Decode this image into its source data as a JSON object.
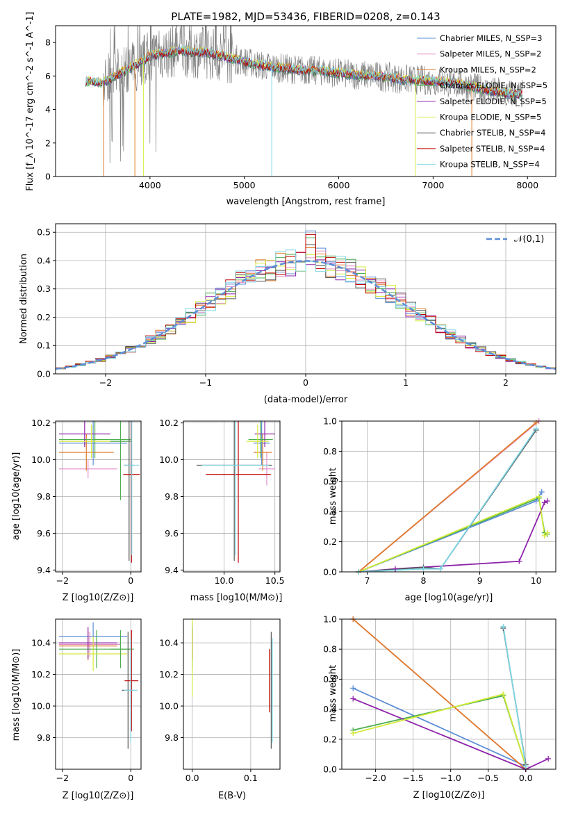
{
  "chart_data": [
    {
      "type": "line",
      "title": "PLATE=1982, MJD=53436, FIBERID=0208, z=0.143",
      "xlabel": "wavelength [Angstrom, rest frame]",
      "ylabel": "Flux [f_λ 10^-17 erg cm^-2 s^-1 A^-1]",
      "xlim": [
        3000,
        8300
      ],
      "ylim": [
        0,
        9
      ],
      "xticks": [
        "4000",
        "5000",
        "6000",
        "7000",
        "8000"
      ],
      "yticks": [
        "0",
        "2",
        "4",
        "6",
        "8"
      ],
      "legend_position": "right",
      "series": [
        {
          "name": "Chabrier MILES, N_SSP=3",
          "color": "#5b8dd6"
        },
        {
          "name": "Salpeter MILES, N_SSP=2",
          "color": "#e38fc8"
        },
        {
          "name": "Kroupa MILES, N_SSP=2",
          "color": "#e07b2a"
        },
        {
          "name": "Chabrier ELODIE, N_SSP=5",
          "color": "#4caf50"
        },
        {
          "name": "Salpeter ELODIE, N_SSP=5",
          "color": "#8e24aa"
        },
        {
          "name": "Kroupa ELODIE, N_SSP=5",
          "color": "#d4ea3a"
        },
        {
          "name": "Chabrier STELIB, N_SSP=4",
          "color": "#555555"
        },
        {
          "name": "Salpeter STELIB, N_SSP=4",
          "color": "#c00000"
        },
        {
          "name": "Kroupa STELIB, N_SSP=4",
          "color": "#7fd8e6"
        }
      ],
      "continuum": {
        "x": [
          3320,
          3500,
          3800,
          4000,
          4300,
          4600,
          4900,
          5200,
          5500,
          5800,
          6100,
          6400,
          6700,
          7000,
          7300,
          7600,
          7900
        ],
        "y": [
          5.7,
          5.6,
          6.5,
          7.2,
          7.5,
          7.4,
          7.0,
          6.6,
          6.4,
          6.3,
          6.1,
          6.0,
          5.8,
          5.7,
          5.5,
          5.1,
          4.9
        ]
      }
    },
    {
      "type": "bar",
      "xlabel": "(data-model)/error",
      "ylabel": "Normed distribution",
      "xlim": [
        -2.5,
        2.5
      ],
      "ylim": [
        0,
        0.53
      ],
      "xticks": [
        "−2",
        "−1",
        "0",
        "1",
        "2"
      ],
      "yticks": [
        "0.0",
        "0.1",
        "0.2",
        "0.3",
        "0.4",
        "0.5"
      ],
      "legend": "𝒩(0,1)",
      "legend_position": "top-right",
      "bin_width": 0.1,
      "gaussian": {
        "mean": 0,
        "sigma": 1
      }
    },
    {
      "type": "scatter",
      "xlabel": "Z [log10(Z/Z⊙)]",
      "ylabel": "age [log10(age/yr)]",
      "xlim": [
        -2.2,
        0.3
      ],
      "ylim": [
        9.39,
        10.21
      ],
      "xticks": [
        "−2",
        "0"
      ],
      "yticks": [
        "9.4",
        "9.6",
        "9.8",
        "10.0",
        "10.2"
      ],
      "points": [
        {
          "x": -1.1,
          "y": 10.09,
          "xerr": 1.0,
          "yerr": 0.12,
          "series": 0
        },
        {
          "x": -1.25,
          "y": 9.95,
          "xerr": 0.85,
          "yerr": 0.05,
          "series": 1
        },
        {
          "x": -1.3,
          "y": 10.04,
          "xerr": 0.8,
          "yerr": 0.1,
          "series": 2
        },
        {
          "x": -1.05,
          "y": 10.11,
          "xerr": 1.05,
          "yerr": 0.1,
          "series": 3
        },
        {
          "x": -1.35,
          "y": 10.14,
          "xerr": 0.75,
          "yerr": 0.07,
          "series": 4
        },
        {
          "x": -1.15,
          "y": 10.1,
          "xerr": 0.95,
          "yerr": 0.09,
          "series": 5
        },
        {
          "x": -0.3,
          "y": 10.1,
          "xerr": 0.3,
          "yerr": 0.32,
          "series": 3
        },
        {
          "x": -0.05,
          "y": 9.97,
          "xerr": 0.15,
          "yerr": 0.52,
          "series": 6
        },
        {
          "x": 0.02,
          "y": 9.92,
          "xerr": 0.24,
          "yerr": 0.48,
          "series": 7
        },
        {
          "x": 0.03,
          "y": 9.97,
          "xerr": 0.22,
          "yerr": 0.49,
          "series": 8
        }
      ]
    },
    {
      "type": "scatter",
      "xlabel": "mass [log10(M/M⊙)]",
      "ylabel": "",
      "xlim": [
        9.6,
        10.55
      ],
      "ylim": [
        9.39,
        10.21
      ],
      "xticks": [
        "10.0",
        "10.5"
      ],
      "yticks": [
        "9.4",
        "9.6",
        "9.8",
        "10.0",
        "10.2"
      ],
      "points": [
        {
          "x": 10.37,
          "y": 10.09,
          "xerr": 0.08,
          "yerr": 0.12,
          "series": 0
        },
        {
          "x": 10.42,
          "y": 9.95,
          "xerr": 0.08,
          "yerr": 0.09,
          "series": 1
        },
        {
          "x": 10.38,
          "y": 10.04,
          "xerr": 0.09,
          "yerr": 0.1,
          "series": 2
        },
        {
          "x": 10.36,
          "y": 10.11,
          "xerr": 0.12,
          "yerr": 0.1,
          "series": 3
        },
        {
          "x": 10.4,
          "y": 10.14,
          "xerr": 0.1,
          "yerr": 0.07,
          "series": 4
        },
        {
          "x": 10.33,
          "y": 10.1,
          "xerr": 0.11,
          "yerr": 0.09,
          "series": 5
        },
        {
          "x": 10.1,
          "y": 9.97,
          "xerr": 0.37,
          "yerr": 0.52,
          "series": 6
        },
        {
          "x": 10.14,
          "y": 9.92,
          "xerr": 0.32,
          "yerr": 0.48,
          "series": 7
        },
        {
          "x": 10.11,
          "y": 9.97,
          "xerr": 0.33,
          "yerr": 0.49,
          "series": 8
        }
      ]
    },
    {
      "type": "line",
      "xlabel": "age [log10(age/yr)]",
      "ylabel": "mass weight",
      "xlim": [
        6.55,
        10.35
      ],
      "ylim": [
        0,
        1
      ],
      "xticks": [
        "7",
        "8",
        "9",
        "10"
      ],
      "yticks": [
        "0.0",
        "0.2",
        "0.4",
        "0.6",
        "0.8",
        "1.0"
      ],
      "series": [
        {
          "color": "#5b8dd6",
          "x": [
            6.85,
            10.0,
            10.1
          ],
          "y": [
            0.0,
            0.47,
            0.53
          ]
        },
        {
          "color": "#e38fc8",
          "x": [
            6.85,
            10.05
          ],
          "y": [
            0.0,
            1.0
          ]
        },
        {
          "color": "#e07b2a",
          "x": [
            6.85,
            10.0
          ],
          "y": [
            0.0,
            0.99
          ]
        },
        {
          "color": "#4caf50",
          "x": [
            6.85,
            10.05,
            10.15,
            10.2
          ],
          "y": [
            0.0,
            0.49,
            0.26,
            0.25
          ]
        },
        {
          "color": "#8e24aa",
          "x": [
            6.85,
            7.5,
            9.7,
            10.15,
            10.2
          ],
          "y": [
            0.0,
            0.02,
            0.07,
            0.46,
            0.47
          ]
        },
        {
          "color": "#d4ea3a",
          "x": [
            6.85,
            10.05,
            10.15,
            10.2
          ],
          "y": [
            0.0,
            0.5,
            0.24,
            0.26
          ]
        },
        {
          "color": "#555555",
          "x": [
            6.85,
            8.0,
            8.3,
            10.0
          ],
          "y": [
            0.0,
            0.03,
            0.02,
            0.94
          ]
        },
        {
          "color": "#7fd8e6",
          "x": [
            6.85,
            8.0,
            8.3,
            10.0
          ],
          "y": [
            0.0,
            0.02,
            0.02,
            0.95
          ]
        }
      ]
    },
    {
      "type": "scatter",
      "xlabel": "Z [log10(Z/Z⊙)]",
      "ylabel": "mass [log10(M/M⊙)]",
      "xlim": [
        -2.2,
        0.3
      ],
      "ylim": [
        9.6,
        10.55
      ],
      "xticks": [
        "−2",
        "0"
      ],
      "yticks": [
        "9.8",
        "10.0",
        "10.2",
        "10.4"
      ],
      "points": [
        {
          "x": -1.1,
          "y": 10.44,
          "xerr": 1.0,
          "yerr": 0.09,
          "series": 0
        },
        {
          "x": -1.2,
          "y": 10.39,
          "xerr": 0.9,
          "yerr": 0.08,
          "series": 1
        },
        {
          "x": -1.25,
          "y": 10.38,
          "xerr": 0.85,
          "yerr": 0.09,
          "series": 2
        },
        {
          "x": -1.0,
          "y": 10.36,
          "xerr": 1.1,
          "yerr": 0.12,
          "series": 3
        },
        {
          "x": -1.25,
          "y": 10.4,
          "xerr": 0.85,
          "yerr": 0.1,
          "series": 4
        },
        {
          "x": -1.1,
          "y": 10.33,
          "xerr": 1.0,
          "yerr": 0.11,
          "series": 5
        },
        {
          "x": -0.3,
          "y": 10.36,
          "xerr": 0.3,
          "yerr": 0.12,
          "series": 3
        },
        {
          "x": -0.08,
          "y": 10.1,
          "xerr": 0.18,
          "yerr": 0.37,
          "series": 6
        },
        {
          "x": 0.02,
          "y": 10.16,
          "xerr": 0.2,
          "yerr": 0.32,
          "series": 7
        },
        {
          "x": 0.0,
          "y": 10.1,
          "xerr": 0.2,
          "yerr": 0.33,
          "series": 8
        }
      ]
    },
    {
      "type": "scatter",
      "xlabel": "E(B-V)",
      "ylabel": "",
      "xlim": [
        -0.015,
        0.15
      ],
      "ylim": [
        9.6,
        10.55
      ],
      "xticks": [
        "0.0",
        "0.1"
      ],
      "yticks": [
        "9.8",
        "10.0",
        "10.2",
        "10.4"
      ],
      "points": [
        {
          "x": 0.0,
          "y": 10.44,
          "yerr": 0.09,
          "series": 0
        },
        {
          "x": 0.0,
          "y": 10.39,
          "yerr": 0.08,
          "series": 1
        },
        {
          "x": 0.0,
          "y": 10.38,
          "yerr": 0.09,
          "series": 2
        },
        {
          "x": 0.0,
          "y": 10.36,
          "yerr": 0.12,
          "series": 3
        },
        {
          "x": 0.0,
          "y": 10.4,
          "yerr": 0.1,
          "series": 4
        },
        {
          "x": 0.0,
          "y": 10.33,
          "yerr": 0.27,
          "series": 5
        },
        {
          "x": 0.135,
          "y": 10.1,
          "yerr": 0.37,
          "series": 6
        },
        {
          "x": 0.132,
          "y": 10.16,
          "yerr": 0.2,
          "series": 7
        },
        {
          "x": 0.137,
          "y": 10.1,
          "yerr": 0.33,
          "series": 8
        }
      ]
    },
    {
      "type": "line",
      "xlabel": "Z [log10(Z/Z⊙)]",
      "ylabel": "mass weight",
      "xlim": [
        -2.45,
        0.4
      ],
      "ylim": [
        0,
        1
      ],
      "xticks": [
        "−2.0",
        "−1.5",
        "−1.0",
        "−0.5",
        "0.0"
      ],
      "yticks": [
        "0.0",
        "0.2",
        "0.4",
        "0.6",
        "0.8",
        "1.0"
      ],
      "series": [
        {
          "color": "#5b8dd6",
          "x": [
            -2.3,
            0.0
          ],
          "y": [
            0.54,
            0.02
          ]
        },
        {
          "color": "#e38fc8",
          "x": [
            -2.3,
            0.0
          ],
          "y": [
            1.0,
            0.0
          ]
        },
        {
          "color": "#e07b2a",
          "x": [
            -2.3,
            0.0
          ],
          "y": [
            1.0,
            0.0
          ]
        },
        {
          "color": "#4caf50",
          "x": [
            -2.3,
            -0.3,
            0.0
          ],
          "y": [
            0.26,
            0.49,
            0.02
          ]
        },
        {
          "color": "#8e24aa",
          "x": [
            -2.3,
            0.0,
            0.3
          ],
          "y": [
            0.47,
            0.0,
            0.07
          ]
        },
        {
          "color": "#d4ea3a",
          "x": [
            -2.3,
            -0.3,
            0.0
          ],
          "y": [
            0.24,
            0.5,
            0.02
          ]
        },
        {
          "color": "#555555",
          "x": [
            -0.3,
            0.0
          ],
          "y": [
            0.94,
            0.03
          ]
        },
        {
          "color": "#7fd8e6",
          "x": [
            -0.3,
            0.0
          ],
          "y": [
            0.95,
            0.02
          ]
        }
      ]
    }
  ]
}
